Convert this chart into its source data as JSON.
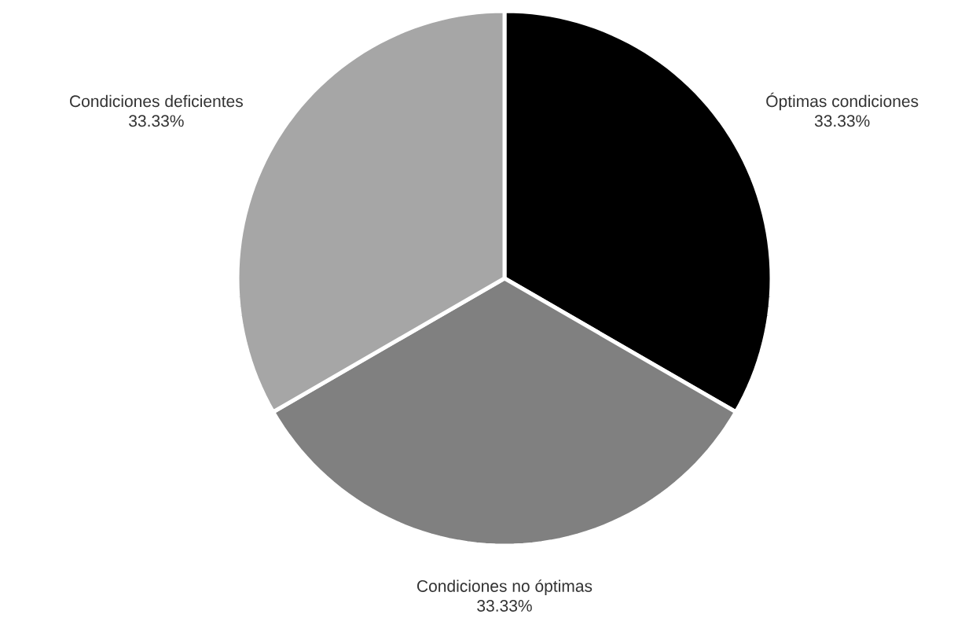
{
  "chart_data": {
    "type": "pie",
    "categories": [
      "Óptimas condiciones",
      "Condiciones no óptimas",
      "Condiciones deficientes"
    ],
    "values": [
      33.33,
      33.33,
      33.33
    ],
    "colors": [
      "#000000",
      "#808080",
      "#a6a6a6"
    ],
    "value_labels": [
      "33.33%",
      "33.33%",
      "33.33%"
    ]
  }
}
